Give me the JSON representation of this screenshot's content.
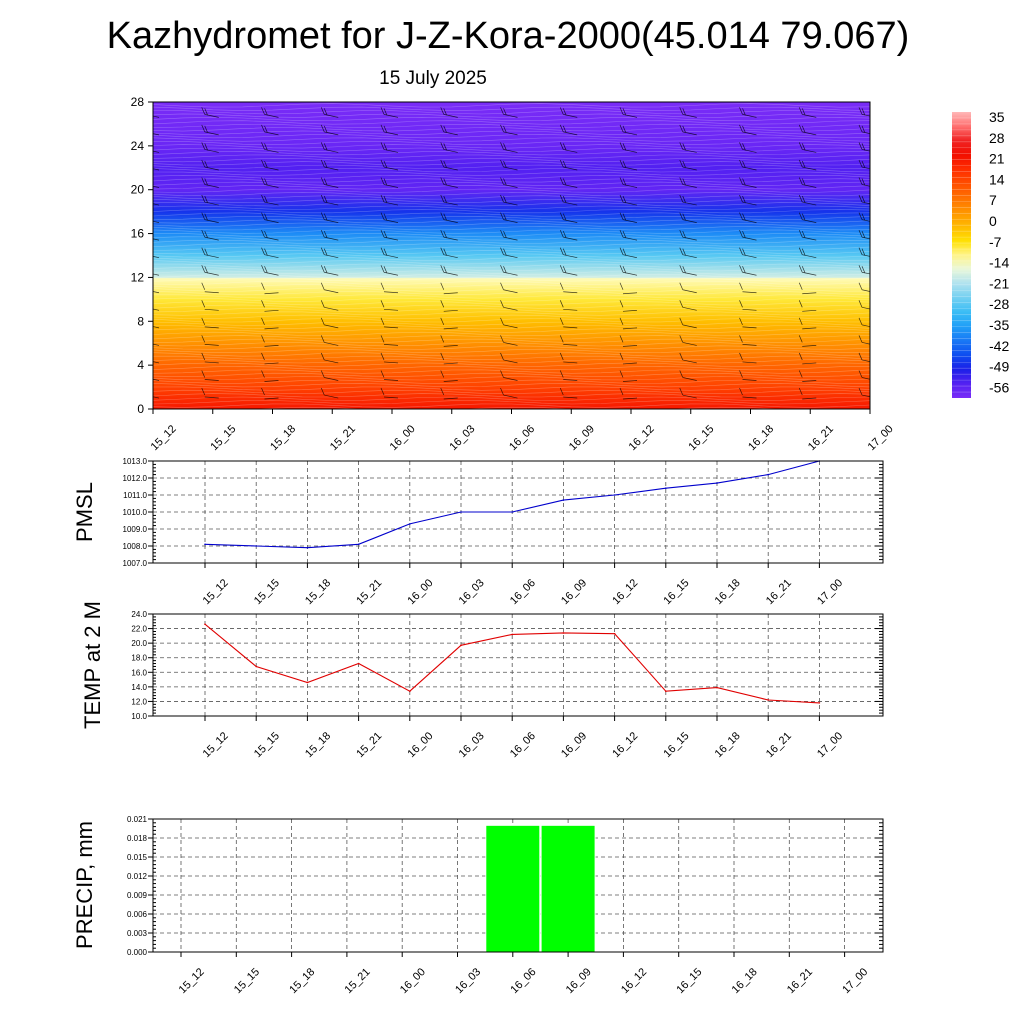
{
  "title": "Kazhydromet for J-Z-Kora-2000(45.014 79.067)",
  "subtitle": "15 July 2025",
  "times": [
    "15_12",
    "15_15",
    "15_18",
    "15_21",
    "16_00",
    "16_03",
    "16_06",
    "16_09",
    "16_12",
    "16_15",
    "16_18",
    "16_21",
    "17_00"
  ],
  "colors": {
    "pmsl_line": "#0000cc",
    "temp_line": "#e00000",
    "precip_bar": "#00ff00"
  },
  "chart_data": [
    {
      "type": "heatmap",
      "ylim": [
        0,
        28
      ],
      "yticks": [
        0,
        4,
        8,
        12,
        16,
        20,
        24,
        28
      ],
      "colorbar": {
        "labels": [
          "35",
          "28",
          "21",
          "14",
          "7",
          "0",
          "-7",
          "-14",
          "-21",
          "-28",
          "-35",
          "-42",
          "-49",
          "-56"
        ],
        "range": [
          -60,
          38
        ]
      },
      "temperature_profile": [
        {
          "level": 0,
          "value": 22
        },
        {
          "level": 2,
          "value": 15
        },
        {
          "level": 4,
          "value": 10
        },
        {
          "level": 6,
          "value": 4
        },
        {
          "level": 8,
          "value": -2
        },
        {
          "level": 10,
          "value": -8
        },
        {
          "level": 11.9,
          "value": -13
        },
        {
          "level": 12,
          "value": -18
        },
        {
          "level": 14,
          "value": -28
        },
        {
          "level": 16,
          "value": -38
        },
        {
          "level": 18,
          "value": -48
        },
        {
          "level": 20,
          "value": -57
        },
        {
          "level": 22,
          "value": -55
        },
        {
          "level": 24,
          "value": -58
        },
        {
          "level": 28,
          "value": -60
        }
      ],
      "wind_barbs": "present"
    },
    {
      "type": "line",
      "ylabel": "PMSL",
      "ylim": [
        1007.0,
        1013.0
      ],
      "yticks": [
        "1007.0",
        "1008.0",
        "1009.0",
        "1010.0",
        "1011.0",
        "1012.0",
        "1013.0"
      ],
      "x": [
        "15_12",
        "15_15",
        "15_18",
        "15_21",
        "16_00",
        "16_03",
        "16_06",
        "16_09",
        "16_12",
        "16_15",
        "16_18",
        "16_21",
        "17_00"
      ],
      "values": [
        1008.1,
        1008.0,
        1007.9,
        1008.1,
        1009.3,
        1010.0,
        1010.0,
        1010.7,
        1011.0,
        1011.4,
        1011.7,
        1012.2,
        1013.0
      ]
    },
    {
      "type": "line",
      "ylabel": "TEMP at 2 M",
      "ylim": [
        10.0,
        24.0
      ],
      "yticks": [
        "10.0",
        "12.0",
        "14.0",
        "16.0",
        "18.0",
        "20.0",
        "22.0",
        "24.0"
      ],
      "x": [
        "15_12",
        "15_15",
        "15_18",
        "15_21",
        "16_00",
        "16_03",
        "16_06",
        "16_09",
        "16_12",
        "16_15",
        "16_18",
        "16_21",
        "17_00"
      ],
      "values": [
        22.6,
        16.8,
        14.6,
        17.2,
        13.4,
        19.7,
        21.2,
        21.4,
        21.3,
        13.4,
        13.9,
        12.2,
        11.8
      ]
    },
    {
      "type": "bar",
      "ylabel": "PRECIP, mm",
      "ylim": [
        0.0,
        0.021
      ],
      "yticks": [
        "0.000",
        "0.003",
        "0.006",
        "0.009",
        "0.012",
        "0.015",
        "0.018",
        "0.021"
      ],
      "x": [
        "15_12",
        "15_15",
        "15_18",
        "15_21",
        "16_00",
        "16_03",
        "16_06",
        "16_09",
        "16_12",
        "16_15",
        "16_18",
        "16_21",
        "17_00"
      ],
      "values": [
        0,
        0,
        0,
        0,
        0,
        0,
        0.02,
        0.02,
        0,
        0,
        0,
        0,
        0
      ]
    }
  ]
}
